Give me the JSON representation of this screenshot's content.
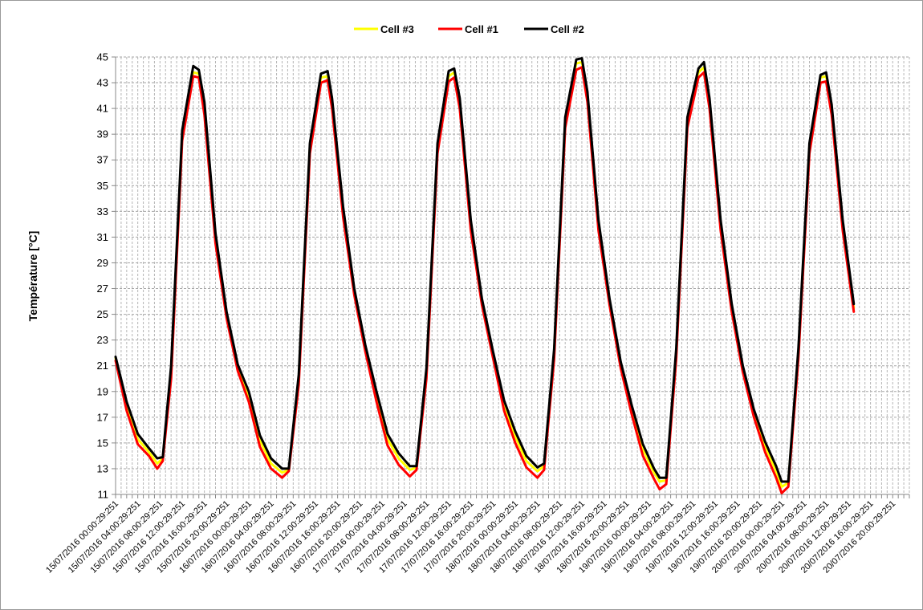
{
  "chart_data": {
    "type": "line",
    "title": "",
    "xlabel": "",
    "ylabel": "Température [°C]",
    "ylim": [
      11,
      45
    ],
    "yticks": [
      11,
      13,
      15,
      17,
      19,
      21,
      23,
      25,
      27,
      29,
      31,
      33,
      35,
      37,
      39,
      41,
      43,
      45
    ],
    "grid": true,
    "legend_position": "top-center",
    "x_tick_labels": [
      "15/07/2016 00:00:29:251",
      "15/07/2016 04:00:29:251",
      "15/07/2016 08:00:29:251",
      "15/07/2016 12:00:29:251",
      "15/07/2016 16:00:29:251",
      "15/07/2016 20:00:29:251",
      "16/07/2016 00:00:29:251",
      "16/07/2016 04:00:29:251",
      "16/07/2016 08:00:29:251",
      "16/07/2016 12:00:29:251",
      "16/07/2016 16:00:29:251",
      "16/07/2016 20:00:29:251",
      "17/07/2016 00:00:29:251",
      "17/07/2016 04:00:29:251",
      "17/07/2016 08:00:29:251",
      "17/07/2016 12:00:29:251",
      "17/07/2016 16:00:29:251",
      "17/07/2016 20:00:29:251",
      "18/07/2016 00:00:29:251",
      "18/07/2016 04:00:29:251",
      "18/07/2016 08:00:29:251",
      "18/07/2016 12:00:29:251",
      "18/07/2016 16:00:29:251",
      "18/07/2016 20:00:29:251",
      "19/07/2016 00:00:29:251",
      "19/07/2016 04:00:29:251",
      "19/07/2016 08:00:29:251",
      "19/07/2016 12:00:29:251",
      "19/07/2016 16:00:29:251",
      "19/07/2016 20:00:29:251",
      "20/07/2016 00:00:29:251",
      "20/07/2016 04:00:29:251",
      "20/07/2016 08:00:29:251",
      "20/07/2016 12:00:29:251",
      "20/07/2016 16:00:29:251",
      "20/07/2016 20:00:29:251"
    ],
    "x_hours": [
      0,
      4,
      8,
      12,
      16,
      20,
      24,
      28,
      32,
      36,
      40,
      44,
      48,
      52,
      56,
      60,
      64,
      68,
      72,
      76,
      80,
      84,
      88,
      92,
      96,
      100,
      104,
      108,
      112,
      116,
      120,
      124,
      128,
      132,
      136,
      140
    ],
    "x_range_hours": [
      0,
      143
    ],
    "series": [
      {
        "name": "Cell #3",
        "color": "#ffff00",
        "points": [
          [
            0,
            21.6
          ],
          [
            2,
            17.8
          ],
          [
            4,
            15.3
          ],
          [
            6,
            14.3
          ],
          [
            7.5,
            13.4
          ],
          [
            8.5,
            13.8
          ],
          [
            10,
            20.5
          ],
          [
            12,
            39.0
          ],
          [
            14,
            43.8
          ],
          [
            15,
            43.7
          ],
          [
            16,
            41.0
          ],
          [
            18,
            31.0
          ],
          [
            20,
            25.0
          ],
          [
            22,
            20.9
          ],
          [
            24,
            18.6
          ],
          [
            26,
            15.2
          ],
          [
            28,
            13.4
          ],
          [
            30,
            12.7
          ],
          [
            31.2,
            12.9
          ],
          [
            33,
            20.0
          ],
          [
            35,
            38.0
          ],
          [
            37,
            43.4
          ],
          [
            38.2,
            43.5
          ],
          [
            39,
            41.5
          ],
          [
            41,
            33.0
          ],
          [
            43,
            26.8
          ],
          [
            45,
            22.4
          ],
          [
            47,
            18.6
          ],
          [
            49,
            15.3
          ],
          [
            51,
            13.8
          ],
          [
            53,
            12.9
          ],
          [
            54.2,
            13.1
          ],
          [
            56,
            20.5
          ],
          [
            58,
            38.0
          ],
          [
            60,
            43.5
          ],
          [
            61,
            43.8
          ],
          [
            62,
            41.5
          ],
          [
            64,
            32.0
          ],
          [
            66,
            26.0
          ],
          [
            68,
            21.9
          ],
          [
            70,
            17.9
          ],
          [
            72,
            15.5
          ],
          [
            74,
            13.6
          ],
          [
            76,
            12.8
          ],
          [
            77.2,
            13.2
          ],
          [
            79,
            22.0
          ],
          [
            81,
            40.0
          ],
          [
            83,
            44.5
          ],
          [
            84,
            44.6
          ],
          [
            85,
            42.0
          ],
          [
            87,
            32.0
          ],
          [
            89,
            26.0
          ],
          [
            91,
            21.1
          ],
          [
            93,
            17.6
          ],
          [
            95,
            14.5
          ],
          [
            97,
            12.7
          ],
          [
            98,
            12.0
          ],
          [
            99.2,
            12.1
          ],
          [
            101,
            22.0
          ],
          [
            103,
            40.0
          ],
          [
            105,
            43.8
          ],
          [
            106,
            44.2
          ],
          [
            107,
            41.5
          ],
          [
            109,
            32.0
          ],
          [
            111,
            25.5
          ],
          [
            113,
            20.8
          ],
          [
            115,
            17.4
          ],
          [
            117,
            14.8
          ],
          [
            119,
            12.8
          ],
          [
            120,
            11.6
          ],
          [
            121.2,
            11.9
          ],
          [
            123,
            22.0
          ],
          [
            125,
            38.0
          ],
          [
            127,
            43.4
          ],
          [
            128,
            43.5
          ],
          [
            129,
            41.0
          ],
          [
            131,
            32.0
          ],
          [
            133,
            25.5
          ]
        ]
      },
      {
        "name": "Cell #1",
        "color": "#ff0000",
        "points": [
          [
            0,
            21.4
          ],
          [
            2,
            17.5
          ],
          [
            4,
            14.9
          ],
          [
            6,
            14.0
          ],
          [
            7.5,
            13.0
          ],
          [
            8.5,
            13.6
          ],
          [
            10,
            20.0
          ],
          [
            12,
            38.5
          ],
          [
            14,
            43.5
          ],
          [
            15,
            43.4
          ],
          [
            16,
            40.5
          ],
          [
            18,
            30.5
          ],
          [
            20,
            24.7
          ],
          [
            22,
            20.6
          ],
          [
            24,
            18.2
          ],
          [
            26,
            14.7
          ],
          [
            28,
            13.0
          ],
          [
            30,
            12.3
          ],
          [
            31.2,
            12.8
          ],
          [
            33,
            19.5
          ],
          [
            35,
            37.5
          ],
          [
            37,
            43.0
          ],
          [
            38.2,
            43.2
          ],
          [
            39,
            41.0
          ],
          [
            41,
            32.5
          ],
          [
            43,
            26.5
          ],
          [
            45,
            22.1
          ],
          [
            47,
            18.2
          ],
          [
            49,
            14.8
          ],
          [
            51,
            13.3
          ],
          [
            53,
            12.4
          ],
          [
            54.2,
            12.9
          ],
          [
            56,
            20.0
          ],
          [
            58,
            37.5
          ],
          [
            60,
            43.1
          ],
          [
            61,
            43.4
          ],
          [
            62,
            41.0
          ],
          [
            64,
            31.5
          ],
          [
            66,
            25.7
          ],
          [
            68,
            21.6
          ],
          [
            70,
            17.5
          ],
          [
            72,
            15.0
          ],
          [
            74,
            13.1
          ],
          [
            76,
            12.3
          ],
          [
            77.2,
            12.9
          ],
          [
            79,
            21.5
          ],
          [
            81,
            39.5
          ],
          [
            83,
            44.0
          ],
          [
            84,
            44.2
          ],
          [
            85,
            41.5
          ],
          [
            87,
            31.5
          ],
          [
            89,
            25.7
          ],
          [
            91,
            20.8
          ],
          [
            93,
            17.2
          ],
          [
            95,
            14.0
          ],
          [
            97,
            12.2
          ],
          [
            98,
            11.4
          ],
          [
            99.2,
            11.8
          ],
          [
            101,
            21.5
          ],
          [
            103,
            39.5
          ],
          [
            105,
            43.4
          ],
          [
            106,
            43.8
          ],
          [
            107,
            41.0
          ],
          [
            109,
            31.5
          ],
          [
            111,
            25.2
          ],
          [
            113,
            20.5
          ],
          [
            115,
            17.0
          ],
          [
            117,
            14.3
          ],
          [
            119,
            12.3
          ],
          [
            120,
            11.1
          ],
          [
            121.2,
            11.6
          ],
          [
            123,
            21.5
          ],
          [
            125,
            37.5
          ],
          [
            127,
            43.0
          ],
          [
            128,
            43.1
          ],
          [
            129,
            40.5
          ],
          [
            131,
            31.5
          ],
          [
            133,
            25.2
          ]
        ]
      },
      {
        "name": "Cell #2",
        "color": "#000000",
        "points": [
          [
            0,
            21.7
          ],
          [
            2,
            18.2
          ],
          [
            4,
            15.7
          ],
          [
            6,
            14.6
          ],
          [
            7.5,
            13.8
          ],
          [
            8.5,
            13.9
          ],
          [
            10,
            21.0
          ],
          [
            12,
            39.3
          ],
          [
            14,
            44.3
          ],
          [
            15,
            44.0
          ],
          [
            16,
            41.5
          ],
          [
            18,
            31.3
          ],
          [
            20,
            25.2
          ],
          [
            22,
            21.1
          ],
          [
            24,
            19.0
          ],
          [
            26,
            15.6
          ],
          [
            28,
            13.8
          ],
          [
            30,
            13.0
          ],
          [
            31.2,
            13.0
          ],
          [
            33,
            20.3
          ],
          [
            35,
            38.3
          ],
          [
            37,
            43.7
          ],
          [
            38.2,
            43.9
          ],
          [
            39,
            41.8
          ],
          [
            41,
            33.3
          ],
          [
            43,
            27.0
          ],
          [
            45,
            22.6
          ],
          [
            47,
            19.0
          ],
          [
            49,
            15.7
          ],
          [
            51,
            14.2
          ],
          [
            53,
            13.2
          ],
          [
            54.2,
            13.2
          ],
          [
            56,
            20.8
          ],
          [
            58,
            38.3
          ],
          [
            60,
            43.9
          ],
          [
            61,
            44.1
          ],
          [
            62,
            41.8
          ],
          [
            64,
            32.3
          ],
          [
            66,
            26.2
          ],
          [
            68,
            22.1
          ],
          [
            70,
            18.3
          ],
          [
            72,
            15.9
          ],
          [
            74,
            14.0
          ],
          [
            76,
            13.1
          ],
          [
            77.2,
            13.4
          ],
          [
            79,
            22.3
          ],
          [
            81,
            40.3
          ],
          [
            83,
            44.8
          ],
          [
            84,
            44.9
          ],
          [
            85,
            42.3
          ],
          [
            87,
            32.3
          ],
          [
            89,
            26.2
          ],
          [
            91,
            21.3
          ],
          [
            93,
            17.9
          ],
          [
            95,
            14.9
          ],
          [
            97,
            13.0
          ],
          [
            98,
            12.3
          ],
          [
            99.2,
            12.3
          ],
          [
            101,
            22.3
          ],
          [
            103,
            40.3
          ],
          [
            105,
            44.1
          ],
          [
            106,
            44.6
          ],
          [
            107,
            41.8
          ],
          [
            109,
            32.3
          ],
          [
            111,
            25.8
          ],
          [
            113,
            21.0
          ],
          [
            115,
            17.6
          ],
          [
            117,
            15.1
          ],
          [
            119,
            13.2
          ],
          [
            120,
            12.0
          ],
          [
            121.2,
            12.0
          ],
          [
            123,
            22.3
          ],
          [
            125,
            38.3
          ],
          [
            127,
            43.6
          ],
          [
            128,
            43.8
          ],
          [
            129,
            41.3
          ],
          [
            131,
            32.3
          ],
          [
            133,
            25.8
          ]
        ]
      }
    ]
  }
}
